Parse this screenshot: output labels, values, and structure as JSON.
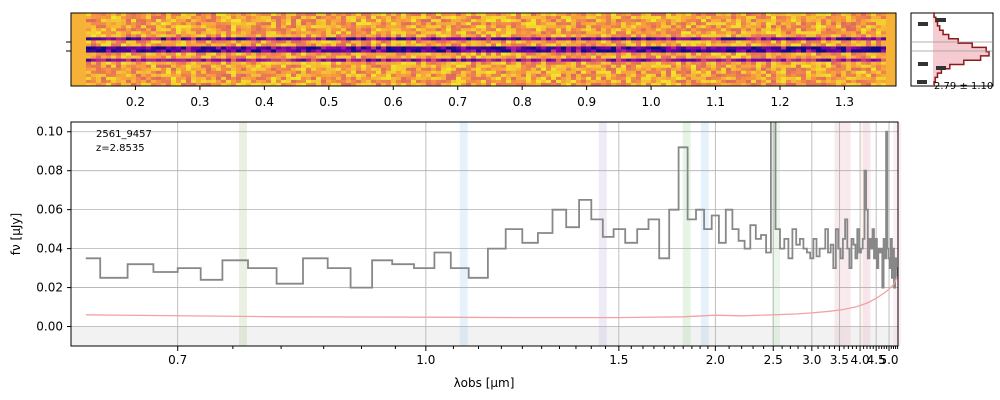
{
  "chart_data": [
    {
      "type": "heatmap",
      "panel": "2d-spectrum",
      "colormap": "plasma",
      "top_axis_ticks": [
        "0.2",
        "0.3",
        "0.4",
        "0.5",
        "0.6",
        "0.7",
        "0.8",
        "0.9",
        "1.0",
        "1.1",
        "1.2",
        "1.3"
      ],
      "top_axis_tick_positions": [
        0.2,
        0.3,
        0.4,
        0.5,
        0.6,
        0.7,
        0.8,
        0.9,
        1.0,
        1.1,
        1.2,
        1.3
      ],
      "xlim": [
        0.1,
        1.38
      ],
      "trace_rows": [
        {
          "level": 0.35,
          "strength": 0.75
        },
        {
          "level": 0.5,
          "strength": 0.9
        },
        {
          "level": 0.65,
          "strength": 0.6
        }
      ]
    },
    {
      "type": "bar",
      "panel": "profile",
      "annotation": "2.79 ± 1.10",
      "orientation": "horizontal",
      "profile_values": [
        0.02,
        0.05,
        0.08,
        0.12,
        0.18,
        0.28,
        0.45,
        0.7,
        0.95,
        1.0,
        0.85,
        0.55,
        0.3,
        0.15,
        0.08,
        0.04,
        0.02
      ]
    },
    {
      "type": "line",
      "panel": "1d-spectrum",
      "xlabel": "λobs [μm]",
      "ylabel": "fν [μJy]",
      "xlim": [
        0.62,
        5.42
      ],
      "ylim": [
        -0.01,
        0.105
      ],
      "xscale": "reciprocal",
      "x_ticks": [
        0.7,
        1.0,
        1.5,
        2.0,
        2.5,
        3.0,
        3.5,
        4.0,
        4.5,
        5.0
      ],
      "x_tick_labels": [
        "0.7",
        "1.0",
        "1.5",
        "2.0",
        "2.5",
        "3.0",
        "3.5",
        "4.0",
        "4.5",
        "5.0"
      ],
      "y_ticks": [
        0.0,
        0.02,
        0.04,
        0.06,
        0.08,
        0.1
      ],
      "y_tick_labels": [
        "0.00",
        "0.02",
        "0.04",
        "0.06",
        "0.08",
        "0.10"
      ],
      "grid": true,
      "legend_placement": "top-left",
      "legend_entries": [
        "2561_9457",
        "z=2.8535"
      ],
      "emission_bands": [
        {
          "x": 0.76,
          "color": "#a3c07a"
        },
        {
          "x": 1.07,
          "color": "#8cc3ef"
        },
        {
          "x": 1.44,
          "color": "#b8a2d6"
        },
        {
          "x": 1.82,
          "color": "#8ccf8c"
        },
        {
          "x": 1.93,
          "color": "#8cc3ef"
        },
        {
          "x": 2.53,
          "color": "#a3d4a3"
        },
        {
          "x": 3.48,
          "color": "#d99aaa"
        },
        {
          "x": 3.66,
          "color": "#e3a0b2"
        },
        {
          "x": 4.15,
          "color": "#f5c4a8"
        },
        {
          "x": 4.2,
          "color": "#e3b8e3"
        },
        {
          "x": 5.38,
          "color": "#f0b8c8"
        }
      ],
      "series": [
        {
          "color": "#888888",
          "style": "step",
          "x": [
            0.63,
            0.65,
            0.67,
            0.69,
            0.71,
            0.73,
            0.75,
            0.78,
            0.81,
            0.84,
            0.87,
            0.9,
            0.93,
            0.96,
            1.0,
            1.03,
            1.06,
            1.1,
            1.14,
            1.18,
            1.22,
            1.26,
            1.3,
            1.34,
            1.38,
            1.42,
            1.46,
            1.5,
            1.55,
            1.6,
            1.65,
            1.7,
            1.75,
            1.8,
            1.85,
            1.9,
            1.95,
            2.0,
            2.05,
            2.1,
            2.15,
            2.2,
            2.25,
            2.3,
            2.35,
            2.4,
            2.45,
            2.5,
            2.55,
            2.6,
            2.65,
            2.7,
            2.75,
            2.8,
            2.85,
            2.9,
            2.95,
            3.0,
            3.05,
            3.1,
            3.15,
            3.2,
            3.25,
            3.3,
            3.35,
            3.4,
            3.45,
            3.5,
            3.55,
            3.6,
            3.65,
            3.7,
            3.75,
            3.8,
            3.85,
            3.9,
            3.95,
            4.0,
            4.05,
            4.1,
            4.15,
            4.2,
            4.25,
            4.3,
            4.35,
            4.4,
            4.45,
            4.5,
            4.55,
            4.6,
            4.65,
            4.7,
            4.75,
            4.8,
            4.85,
            4.9,
            4.95,
            5.0,
            5.05,
            5.1,
            5.15,
            5.2,
            5.25,
            5.3,
            5.35,
            5.4
          ],
          "y": [
            0.035,
            0.025,
            0.032,
            0.028,
            0.03,
            0.024,
            0.034,
            0.03,
            0.022,
            0.035,
            0.03,
            0.02,
            0.034,
            0.032,
            0.03,
            0.038,
            0.03,
            0.025,
            0.04,
            0.05,
            0.043,
            0.048,
            0.06,
            0.051,
            0.065,
            0.055,
            0.046,
            0.05,
            0.043,
            0.05,
            0.055,
            0.035,
            0.06,
            0.092,
            0.055,
            0.06,
            0.05,
            0.057,
            0.043,
            0.06,
            0.05,
            0.044,
            0.04,
            0.052,
            0.045,
            0.047,
            0.038,
            0.11,
            0.05,
            0.04,
            0.045,
            0.035,
            0.05,
            0.042,
            0.045,
            0.04,
            0.038,
            0.035,
            0.045,
            0.036,
            0.04,
            0.04,
            0.05,
            0.038,
            0.042,
            0.03,
            0.05,
            0.04,
            0.035,
            0.045,
            0.055,
            0.04,
            0.03,
            0.045,
            0.042,
            0.035,
            0.05,
            0.038,
            0.04,
            0.045,
            0.08,
            0.06,
            0.035,
            0.045,
            0.04,
            0.05,
            0.035,
            0.045,
            0.03,
            0.04,
            0.038,
            0.04,
            0.02,
            0.045,
            0.035,
            0.1,
            0.04,
            0.035,
            0.03,
            0.045,
            0.025,
            0.04,
            0.02,
            0.035,
            0.03,
            0.025
          ]
        },
        {
          "color": "#f2a3a3",
          "style": "line",
          "x": [
            0.63,
            0.8,
            1.0,
            1.2,
            1.5,
            1.8,
            2.0,
            2.2,
            2.5,
            2.8,
            3.0,
            3.3,
            3.6,
            3.9,
            4.2,
            4.5,
            4.8,
            5.0,
            5.2,
            5.4
          ],
          "y": [
            0.006,
            0.005,
            0.0048,
            0.0046,
            0.0046,
            0.005,
            0.0058,
            0.0055,
            0.006,
            0.0065,
            0.007,
            0.0078,
            0.0088,
            0.0102,
            0.012,
            0.0145,
            0.0172,
            0.0192,
            0.0215,
            0.0258
          ]
        }
      ]
    }
  ]
}
